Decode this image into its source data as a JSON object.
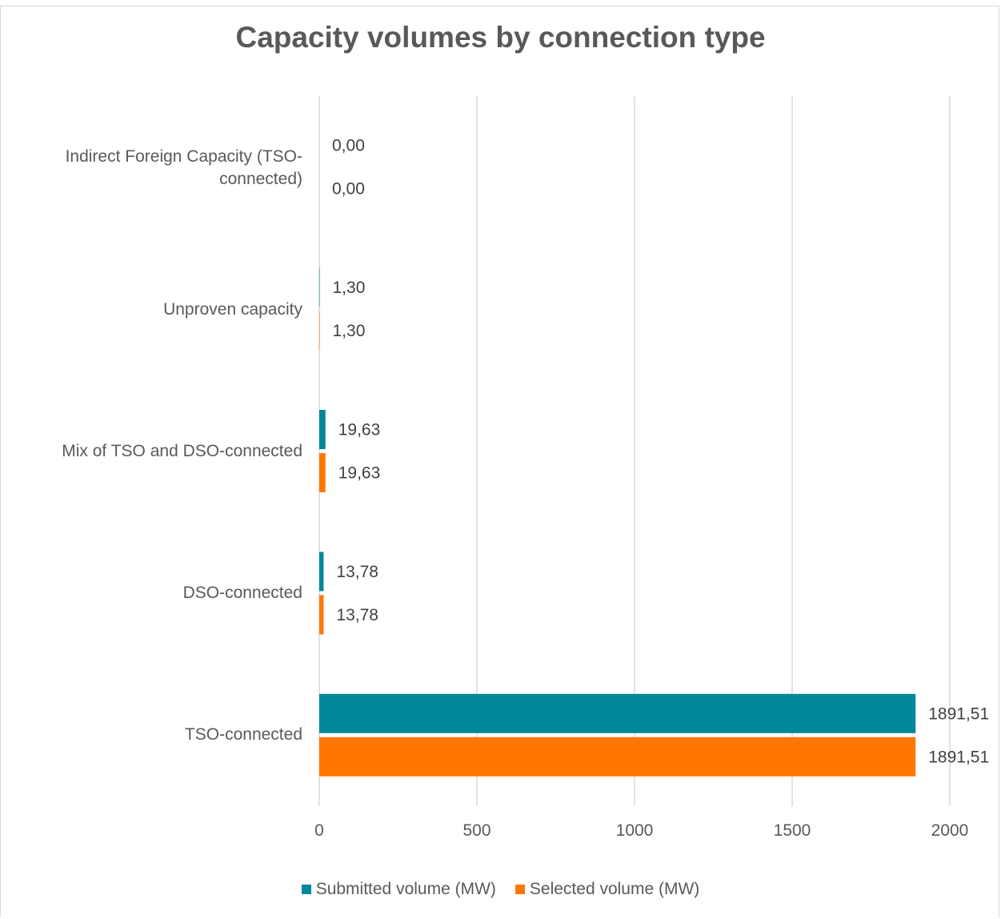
{
  "chart_data": {
    "type": "bar",
    "orientation": "horizontal",
    "title": "Capacity volumes by connection type",
    "categories": [
      "Indirect Foreign Capacity (TSO-connected)",
      "Unproven capacity",
      "Mix of TSO and DSO-connected",
      "DSO-connected",
      "TSO-connected"
    ],
    "series": [
      {
        "name": "Submitted volume (MW)",
        "color": "#00879a",
        "values": [
          0.0,
          1.3,
          19.63,
          13.78,
          1891.51
        ],
        "labels": [
          "0,00",
          "1,30",
          "19,63",
          "13,78",
          "1891,51"
        ]
      },
      {
        "name": "Selected volume (MW)",
        "color": "#ff7700",
        "values": [
          0.0,
          1.3,
          19.63,
          13.78,
          1891.51
        ],
        "labels": [
          "0,00",
          "1,30",
          "19,63",
          "13,78",
          "1891,51"
        ]
      }
    ],
    "xlim": [
      0,
      2000
    ],
    "xticks": [
      0,
      500,
      1000,
      1500,
      2000
    ],
    "xtick_labels": [
      "0",
      "500",
      "1000",
      "1500",
      "2000"
    ],
    "grid": true,
    "legend": "bottom"
  }
}
